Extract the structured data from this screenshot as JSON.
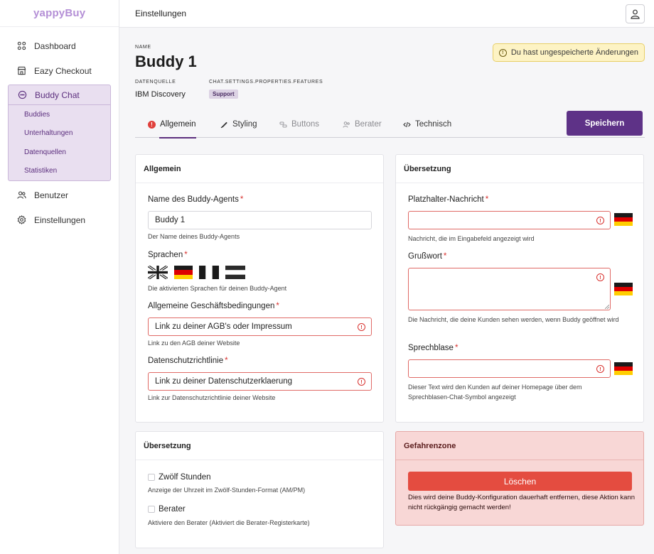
{
  "brand": {
    "logo": "yappyBuy"
  },
  "sidebar": {
    "items": [
      {
        "label": "Dashboard",
        "icon": "grid-icon"
      },
      {
        "label": "Eazy Checkout",
        "icon": "store-icon"
      },
      {
        "label": "Buddy Chat",
        "icon": "chat-icon"
      },
      {
        "label": "Benutzer",
        "icon": "users-icon"
      },
      {
        "label": "Einstellungen",
        "icon": "gear-icon"
      }
    ],
    "sub_items": [
      "Buddies",
      "Unterhaltungen",
      "Datenquellen",
      "Statistiken"
    ]
  },
  "topbar": {
    "title": "Einstellungen"
  },
  "header": {
    "name_label": "NAME",
    "bot_name": "Buddy 1",
    "source_label": "DATENQUELLE",
    "source_value": "IBM Discovery",
    "features_label": "CHAT.SETTINGS.PROPERTIES.FEATURES",
    "features_badge": "Support",
    "unsaved_notice": "Du hast ungespeicherte Änderungen"
  },
  "tabs": [
    "Allgemein",
    "Styling",
    "Buttons",
    "Berater",
    "Technisch"
  ],
  "save_label": "Speichern",
  "general": {
    "title": "Allgemein",
    "agent_name_label": "Name des Buddy-Agents",
    "agent_name_value": "Buddy 1",
    "agent_name_help": "Der Name deines Buddy-Agents",
    "languages_label": "Sprachen",
    "languages_help": "Die aktivierten Sprachen für deinen Buddy-Agent",
    "terms_label": "Allgemeine Geschäftsbedingungen",
    "terms_placeholder": "Link zu deiner AGB's oder Impressum",
    "terms_help": "Link zu den AGB deiner Website",
    "privacy_label": "Datenschutzrichtlinie",
    "privacy_placeholder": "Link zu deiner Datenschutzerklaerung",
    "privacy_help": "Link zur Datenschutzrichtlinie deiner Website",
    "required_mark": "*"
  },
  "translation": {
    "title": "Übersetzung",
    "placeholder_label": "Platzhalter-Nachricht",
    "placeholder_help": "Nachricht, die im Eingabefeld angezeigt wird",
    "greeting_label": "Grußwort",
    "greeting_help": "Die Nachricht, die deine Kunden sehen werden, wenn Buddy geöffnet wird",
    "bubble_label": "Sprechblase",
    "bubble_help": "Dieser Text wird den Kunden auf deiner Homepage über dem Sprechblasen-Chat-Symbol angezeigt"
  },
  "translation2": {
    "title": "Übersetzung",
    "twelve_label": "Zwölf Stunden",
    "twelve_help": "Anzeige der Uhrzeit im Zwölf-Stunden-Format (AM/PM)",
    "advisor_label": "Berater",
    "advisor_help": "Aktiviere den Berater (Aktiviert die Berater-Registerkarte)"
  },
  "danger": {
    "title": "Gefahrenzone",
    "delete_label": "Löschen",
    "warning": "Dies wird deine Buddy-Konfiguration dauerhaft entfernen, diese Aktion kann nicht rückgängig gemacht werden!"
  },
  "colors": {
    "primary": "#5e3287",
    "danger": "#e44c40",
    "error": "#d8322f",
    "warning_bg": "#fdf3c4"
  }
}
